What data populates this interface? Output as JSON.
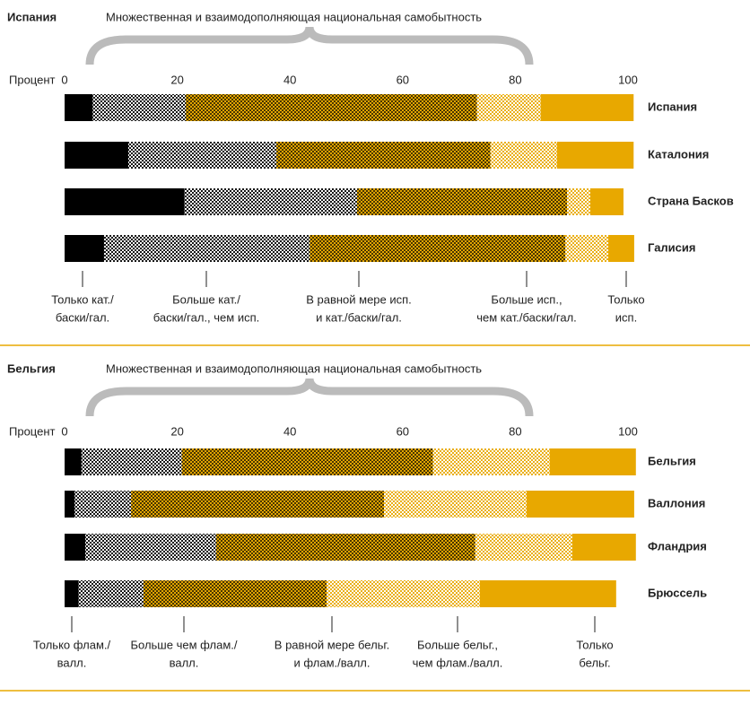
{
  "chart_data": [
    {
      "type": "stacked_bar",
      "title": "Испания",
      "subtitle": "Множественная и взаимодополняющая национальная самобытность",
      "x_label": "Процент",
      "xlim": [
        0,
        100
      ],
      "xticks": [
        0,
        20,
        40,
        60,
        80,
        100
      ],
      "categories": [
        "Испания",
        "Каталония",
        "Страна Басков",
        "Галисия"
      ],
      "series": [
        {
          "name": [
            "Только кат./",
            "баски/гал."
          ],
          "color": "#000000",
          "dot_color": "#000000",
          "values": [
            5,
            11.3,
            21.3,
            7
          ]
        },
        {
          "name": [
            "Больше кат./",
            "баски/гал., чем исп."
          ],
          "color": "#ffffff",
          "dot_color": "#000000",
          "values": [
            16.5,
            26.3,
            30.6,
            36.5
          ]
        },
        {
          "name": [
            "В равной мере исп.",
            "и кат./баски/гал."
          ],
          "color": "#e8a800",
          "dot_color": "#3a2c00",
          "values": [
            51.7,
            38,
            37.3,
            45.4
          ]
        },
        {
          "name": [
            "Больше исп.,",
            "чем кат./баски/гал."
          ],
          "color": "#ffffff",
          "dot_color": "#e8a800",
          "values": [
            11.3,
            11.8,
            4.1,
            7.6
          ]
        },
        {
          "name": [
            "Только",
            "исп."
          ],
          "color": "#e8a800",
          "dot_color": "#e8a800",
          "values": [
            16.5,
            13.6,
            5.9,
            4.6
          ]
        }
      ]
    },
    {
      "type": "stacked_bar",
      "title": "Бельгия",
      "subtitle": "Множественная и взаимодополняющая национальная самобытность",
      "x_label": "Процент",
      "xlim": [
        0,
        100
      ],
      "xticks": [
        0,
        20,
        40,
        60,
        80,
        100
      ],
      "categories": [
        "Бельгия",
        "Валлония",
        "Фландрия",
        "Брюссель"
      ],
      "series": [
        {
          "name": [
            "Только флам./",
            "валл."
          ],
          "color": "#000000",
          "dot_color": "#000000",
          "values": [
            3,
            1.8,
            3.7,
            2.5
          ]
        },
        {
          "name": [
            "Больше чем флам./",
            "валл."
          ],
          "color": "#ffffff",
          "dot_color": "#000000",
          "values": [
            17.8,
            10,
            23.2,
            11.5
          ]
        },
        {
          "name": [
            "В равной мере бельг.",
            "и флам./валл."
          ],
          "color": "#e8a800",
          "dot_color": "#3a2c00",
          "values": [
            44.6,
            44.9,
            46,
            32.5
          ]
        },
        {
          "name": [
            "Больше бельг.,",
            "чем флам./валл."
          ],
          "color": "#ffffff",
          "dot_color": "#e8a800",
          "values": [
            20.7,
            25.3,
            17.2,
            27.2
          ]
        },
        {
          "name": [
            "Только",
            "бельг."
          ],
          "color": "#e8a800",
          "dot_color": "#e8a800",
          "values": [
            15.3,
            19.1,
            11.3,
            24.2
          ]
        }
      ]
    }
  ]
}
